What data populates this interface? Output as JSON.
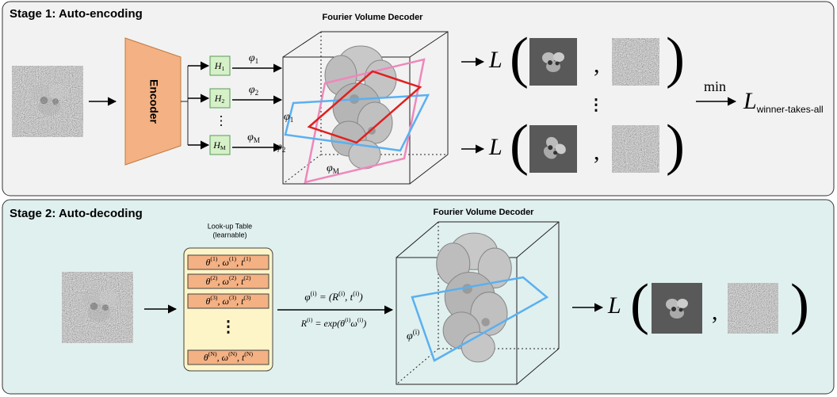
{
  "stage1": {
    "title": "Stage 1: Auto-encoding",
    "decoder_title": "Fourier Volume Decoder",
    "encoder": "Encoder",
    "heads": [
      [
        {
          "text": "H",
          "sub": "1"
        }
      ],
      [
        {
          "text": "H",
          "sub": "2"
        }
      ],
      [
        {
          "text": "H",
          "sub": "M"
        }
      ]
    ],
    "heads_ellipsis": "⋮",
    "pose_labels": [
      [
        {
          "text": "φ",
          "sub": "1"
        }
      ],
      [
        {
          "text": "φ",
          "sub": "2"
        }
      ],
      [
        {
          "text": "φ",
          "sub": "M"
        }
      ]
    ],
    "plane_labels": [
      [
        {
          "text": "φ",
          "sub": "1"
        }
      ],
      [
        {
          "text": "φ",
          "sub": "2"
        }
      ],
      [
        {
          "text": "φ",
          "sub": "M"
        }
      ]
    ],
    "loss": "L",
    "comma": ",",
    "ellipsis": "⋮",
    "min": "min",
    "result": [
      {
        "text": "L",
        "sub": "winner-takes-all"
      }
    ]
  },
  "stage2": {
    "title": "Stage 2: Auto-decoding",
    "decoder_title": "Fourier Volume Decoder",
    "table_title": [
      "Look-up Table",
      "(learnable)"
    ],
    "table_rows": [
      [
        {
          "text": "θ",
          "sup": "(1)"
        },
        {
          "text": ", ω",
          "sup": "(1)"
        },
        {
          "text": ", t",
          "sup": "(1)"
        }
      ],
      [
        {
          "text": "θ",
          "sup": "(2)"
        },
        {
          "text": ", ω",
          "sup": "(2)"
        },
        {
          "text": ", t",
          "sup": "(2)"
        }
      ],
      [
        {
          "text": "θ",
          "sup": "(3)"
        },
        {
          "text": ", ω",
          "sup": "(3)"
        },
        {
          "text": ", t",
          "sup": "(3)"
        }
      ],
      [
        {
          "text": "θ",
          "sup": "(N)"
        },
        {
          "text": ", ω",
          "sup": "(N)"
        },
        {
          "text": ", t",
          "sup": "(N)"
        }
      ]
    ],
    "table_ellipsis": "⋮",
    "pose_eq": [
      {
        "text": "φ",
        "sup": "(i)"
      },
      {
        "text": " = (R",
        "sup": "(i)"
      },
      {
        "text": ", t",
        "sup": "(i)"
      },
      {
        "text": ")"
      }
    ],
    "rot_eq": [
      {
        "text": "R",
        "sup": "(i)"
      },
      {
        "text": " = exp(θ",
        "sup": "(i)"
      },
      {
        "text": "ω",
        "sup": "(i)"
      },
      {
        "text": ")"
      }
    ],
    "plane_label": [
      {
        "text": "φ",
        "sup": "(i)"
      }
    ],
    "loss": "L",
    "comma": ","
  }
}
